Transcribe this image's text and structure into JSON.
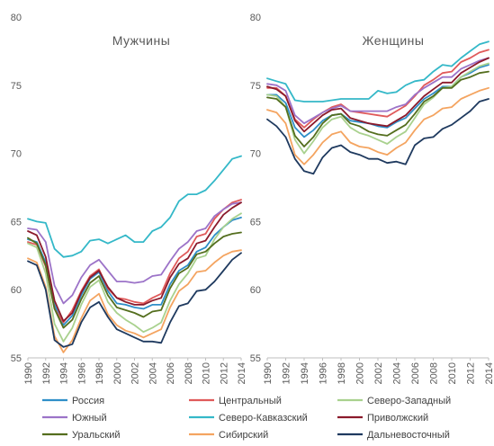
{
  "chart_data": [
    {
      "type": "line",
      "title": "Мужчины",
      "x": [
        1990,
        1991,
        1992,
        1993,
        1994,
        1995,
        1996,
        1997,
        1998,
        1999,
        2000,
        2001,
        2002,
        2003,
        2004,
        2005,
        2006,
        2007,
        2008,
        2009,
        2010,
        2011,
        2012,
        2013,
        2014
      ],
      "x_tick_labels": [
        "1990",
        "1992",
        "1994",
        "1996",
        "1998",
        "2000",
        "2002",
        "2004",
        "2006",
        "2008",
        "2010",
        "2012",
        "2014"
      ],
      "ylim": [
        55,
        80
      ],
      "y_ticks": [
        55,
        60,
        65,
        70,
        75,
        80
      ],
      "series": [
        {
          "name": "Россия",
          "color": "#2f8fc8",
          "values": [
            63.7,
            63.5,
            62.0,
            58.9,
            57.4,
            58.1,
            59.6,
            60.8,
            61.3,
            59.9,
            59.0,
            58.9,
            58.7,
            58.6,
            58.9,
            58.9,
            60.4,
            61.4,
            61.8,
            62.8,
            63.1,
            64.0,
            64.6,
            65.1,
            65.3
          ]
        },
        {
          "name": "Центральный",
          "color": "#e05a5a",
          "values": [
            63.5,
            63.3,
            61.7,
            58.6,
            57.6,
            58.5,
            59.9,
            61.0,
            61.5,
            60.1,
            59.4,
            59.3,
            59.1,
            59.0,
            59.4,
            59.7,
            61.2,
            62.3,
            62.8,
            63.9,
            64.1,
            65.2,
            65.9,
            66.4,
            66.6
          ]
        },
        {
          "name": "Северо-Западный",
          "color": "#a9d18e",
          "values": [
            63.4,
            63.1,
            61.2,
            57.5,
            56.2,
            57.2,
            58.9,
            60.2,
            60.7,
            59.1,
            58.3,
            57.8,
            57.4,
            56.9,
            57.2,
            57.6,
            59.2,
            60.4,
            61.2,
            62.3,
            62.5,
            63.7,
            64.6,
            65.2,
            65.6
          ]
        },
        {
          "name": "Южный",
          "color": "#9c73c8",
          "values": [
            64.5,
            64.4,
            63.5,
            60.3,
            59.0,
            59.6,
            60.9,
            61.8,
            62.2,
            61.4,
            60.6,
            60.6,
            60.5,
            60.6,
            61.0,
            61.1,
            62.1,
            63.0,
            63.5,
            64.3,
            64.5,
            65.4,
            65.9,
            66.3,
            66.4
          ]
        },
        {
          "name": "Северо-Кавказский",
          "color": "#34b8c8",
          "values": [
            65.2,
            65.0,
            64.9,
            63.0,
            62.4,
            62.5,
            62.8,
            63.6,
            63.7,
            63.4,
            63.7,
            64.0,
            63.5,
            63.5,
            64.3,
            64.6,
            65.3,
            66.5,
            67.0,
            67.0,
            67.3,
            68.0,
            68.8,
            69.6,
            69.8
          ]
        },
        {
          "name": "Приволжский",
          "color": "#8b1a2b",
          "values": [
            64.3,
            64.0,
            62.4,
            59.2,
            57.7,
            58.3,
            59.8,
            60.9,
            61.4,
            60.2,
            59.4,
            59.1,
            58.9,
            58.9,
            59.2,
            59.4,
            60.9,
            61.9,
            62.3,
            63.4,
            63.6,
            64.6,
            65.5,
            66.0,
            66.4
          ]
        },
        {
          "name": "Уральский",
          "color": "#546e1e",
          "values": [
            63.8,
            63.4,
            61.8,
            58.6,
            57.2,
            57.8,
            59.3,
            60.5,
            61.0,
            59.6,
            58.7,
            58.5,
            58.3,
            58.0,
            58.4,
            58.5,
            60.1,
            61.2,
            61.6,
            62.6,
            62.8,
            63.4,
            63.9,
            64.1,
            64.2
          ]
        },
        {
          "name": "Сибирский",
          "color": "#f4a460",
          "values": [
            62.3,
            62.0,
            60.2,
            56.6,
            55.4,
            56.3,
            57.9,
            59.2,
            59.7,
            58.2,
            57.4,
            57.0,
            56.8,
            56.5,
            56.8,
            57.1,
            58.7,
            59.9,
            60.4,
            61.3,
            61.4,
            62.0,
            62.5,
            62.8,
            62.9
          ]
        },
        {
          "name": "Дальневосточный",
          "color": "#1f3a5f",
          "values": [
            62.1,
            61.8,
            60.0,
            56.3,
            55.8,
            56.0,
            57.6,
            58.7,
            59.1,
            58.0,
            57.1,
            56.8,
            56.5,
            56.2,
            56.2,
            56.1,
            57.6,
            58.8,
            59.0,
            59.9,
            60.0,
            60.6,
            61.4,
            62.2,
            62.7
          ]
        }
      ]
    },
    {
      "type": "line",
      "title": "Женщины",
      "x": [
        1990,
        1991,
        1992,
        1993,
        1994,
        1995,
        1996,
        1997,
        1998,
        1999,
        2000,
        2001,
        2002,
        2003,
        2004,
        2005,
        2006,
        2007,
        2008,
        2009,
        2010,
        2011,
        2012,
        2013,
        2014
      ],
      "x_tick_labels": [
        "1990",
        "1992",
        "1994",
        "1996",
        "1998",
        "2000",
        "2002",
        "2004",
        "2006",
        "2008",
        "2010",
        "2012",
        "2014"
      ],
      "ylim": [
        55,
        80
      ],
      "y_ticks": [
        55,
        60,
        65,
        70,
        75,
        80
      ],
      "series": [
        {
          "name": "Россия",
          "color": "#2f8fc8",
          "values": [
            74.3,
            74.3,
            73.7,
            71.9,
            71.2,
            71.7,
            72.4,
            72.8,
            72.9,
            72.4,
            72.3,
            72.2,
            72.0,
            71.9,
            72.3,
            72.6,
            73.3,
            74.0,
            74.4,
            74.9,
            74.9,
            75.6,
            75.9,
            76.3,
            76.5
          ]
        },
        {
          "name": "Центральный",
          "color": "#e05a5a",
          "values": [
            74.8,
            74.8,
            74.2,
            72.5,
            71.9,
            72.5,
            73.0,
            73.4,
            73.6,
            73.1,
            73.0,
            72.9,
            72.8,
            72.7,
            73.1,
            73.5,
            74.2,
            75.0,
            75.4,
            75.9,
            76.0,
            76.7,
            77.0,
            77.4,
            77.6
          ]
        },
        {
          "name": "Северо-Западный",
          "color": "#a9d18e",
          "values": [
            74.3,
            74.2,
            73.4,
            71.0,
            70.0,
            70.9,
            71.9,
            72.5,
            72.7,
            71.9,
            71.5,
            71.3,
            71.0,
            70.7,
            71.2,
            71.6,
            72.6,
            73.6,
            74.1,
            74.8,
            74.9,
            75.6,
            76.0,
            76.4,
            76.6
          ]
        },
        {
          "name": "Южный",
          "color": "#9c73c8",
          "values": [
            75.1,
            75.0,
            74.6,
            72.8,
            72.2,
            72.6,
            73.0,
            73.3,
            73.5,
            73.1,
            73.1,
            73.1,
            73.1,
            73.1,
            73.4,
            73.6,
            74.3,
            74.8,
            75.2,
            75.6,
            75.6,
            76.2,
            76.5,
            76.8,
            77.0
          ]
        },
        {
          "name": "Северо-Кавказский",
          "color": "#34b8c8",
          "values": [
            75.5,
            75.3,
            75.1,
            73.9,
            73.8,
            73.8,
            73.8,
            73.9,
            74.0,
            74.0,
            74.0,
            74.0,
            74.6,
            74.4,
            74.5,
            75.0,
            75.3,
            75.4,
            76.0,
            76.5,
            76.4,
            77.0,
            77.5,
            78.0,
            78.2
          ]
        },
        {
          "name": "Приволжский",
          "color": "#8b1a2b",
          "values": [
            74.9,
            74.7,
            74.2,
            72.4,
            71.6,
            72.2,
            72.8,
            73.2,
            73.3,
            72.6,
            72.4,
            72.2,
            72.1,
            72.0,
            72.4,
            72.8,
            73.5,
            74.2,
            74.7,
            75.2,
            75.2,
            75.9,
            76.3,
            76.7,
            77.0
          ]
        },
        {
          "name": "Уральский",
          "color": "#546e1e",
          "values": [
            74.1,
            74.0,
            73.4,
            71.3,
            70.5,
            71.2,
            72.2,
            72.8,
            72.9,
            72.2,
            72.0,
            71.6,
            71.4,
            71.3,
            71.7,
            72.1,
            72.9,
            73.8,
            74.2,
            74.8,
            74.8,
            75.4,
            75.6,
            75.9,
            76.0
          ]
        },
        {
          "name": "Сибирский",
          "color": "#f4a460",
          "values": [
            73.2,
            73.0,
            72.2,
            69.9,
            69.2,
            69.9,
            70.8,
            71.4,
            71.6,
            70.8,
            70.5,
            70.4,
            70.1,
            69.9,
            70.4,
            70.8,
            71.7,
            72.5,
            72.8,
            73.3,
            73.4,
            74.0,
            74.3,
            74.6,
            74.8
          ]
        },
        {
          "name": "Дальневосточный",
          "color": "#1f3a5f",
          "values": [
            72.5,
            72.0,
            71.2,
            69.6,
            68.7,
            68.5,
            69.7,
            70.4,
            70.6,
            70.1,
            69.9,
            69.6,
            69.6,
            69.3,
            69.4,
            69.2,
            70.6,
            71.1,
            71.2,
            71.8,
            72.1,
            72.6,
            73.1,
            73.8,
            74.0
          ]
        }
      ]
    }
  ],
  "legend": {
    "items": [
      {
        "name": "Россия",
        "color": "#2f8fc8"
      },
      {
        "name": "Центральный",
        "color": "#e05a5a"
      },
      {
        "name": "Северо-Западный",
        "color": "#a9d18e"
      },
      {
        "name": "Южный",
        "color": "#9c73c8"
      },
      {
        "name": "Северо-Кавказский",
        "color": "#34b8c8"
      },
      {
        "name": "Приволжский",
        "color": "#8b1a2b"
      },
      {
        "name": "Уральский",
        "color": "#546e1e"
      },
      {
        "name": "Сибирский",
        "color": "#f4a460"
      },
      {
        "name": "Дальневосточный",
        "color": "#1f3a5f"
      }
    ]
  }
}
